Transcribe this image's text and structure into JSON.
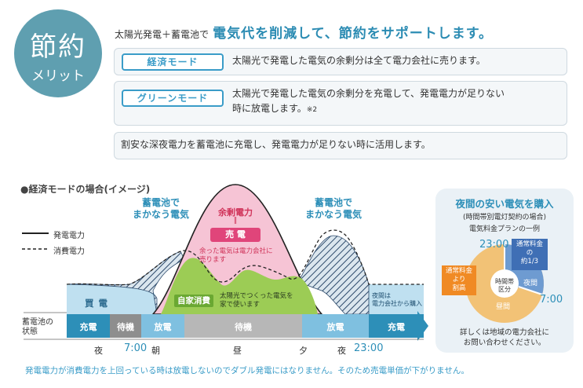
{
  "badge": {
    "line1": "節約",
    "line2": "メリット"
  },
  "headline": {
    "prefix": "太陽光発電＋蓄電池で",
    "main": "電気代を削減して、節約をサポートします。"
  },
  "modes": [
    {
      "tag": "経済モード",
      "text": "太陽光で発電した電気の余剰分は全て電力会社に売ります。"
    },
    {
      "tag": "グリーンモード",
      "text": "太陽光で発電した電気の余剰分を充電して、発電電力が足りない",
      "text2": "時に放電します。",
      "note": "※2"
    },
    {
      "text": "割安な深夜電力を蓄電池に充電し、発電電力が足りない時に活用します。"
    }
  ],
  "diagram": {
    "title": "●経済モードの場合(イメージ)",
    "legend": {
      "generation": "発電電力",
      "consumption": "消費電力"
    },
    "callout_left": [
      "蓄電池で",
      "まかなう電気"
    ],
    "callout_right": [
      "蓄電池で",
      "まかなう電気"
    ],
    "surplus_title": "余剰電力",
    "surplus_eq": "‖",
    "sell_label": "売 電",
    "surplus_desc": [
      "余った電気は電力会社に",
      "売ります"
    ],
    "buy_label": "買 電",
    "self_use": "自家消費",
    "self_use_desc": [
      "太陽光でつくった電気を",
      "家で使います"
    ],
    "night_buy": [
      "夜間は",
      "電力会社から購入"
    ],
    "battery_state_label": [
      "蓄電池の",
      "状態"
    ],
    "states": [
      "充電",
      "待機",
      "放電",
      "待機",
      "放電",
      "充電"
    ],
    "timeline": {
      "night1": "夜",
      "t1": "7:00",
      "morning": "朝",
      "noon": "昼",
      "evening": "夕",
      "night2": "夜",
      "t2": "23:00"
    },
    "footnote": "発電電力が消費電力を上回っている時は放電しないのでダブル発電にはなりません。そのため売電単価が下がりません。"
  },
  "panel": {
    "title": "夜間の安い電気を購入",
    "sub1": "(時間帯別電灯契約の場合)",
    "sub2": "電気料金プランの一例",
    "t_top": "23:00",
    "t_right": "7:00",
    "night_label": "夜間",
    "day_label": "昼間",
    "center": [
      "時間帯",
      "区分"
    ],
    "callout_a": [
      "通常料金",
      "の",
      "約1/3"
    ],
    "callout_b": [
      "通常料金",
      "より",
      "割高"
    ],
    "foot": [
      "詳しくは地域の電力会社に",
      "お問い合わせください。"
    ],
    "share": {
      "night": 0.33,
      "day": 0.67
    }
  },
  "colors": {
    "accent": "#2c8cb3",
    "badge": "#5f9fb0",
    "green": "#9ccc55",
    "pink": "#f6c4d5",
    "blue_light": "#bfe0f0"
  }
}
